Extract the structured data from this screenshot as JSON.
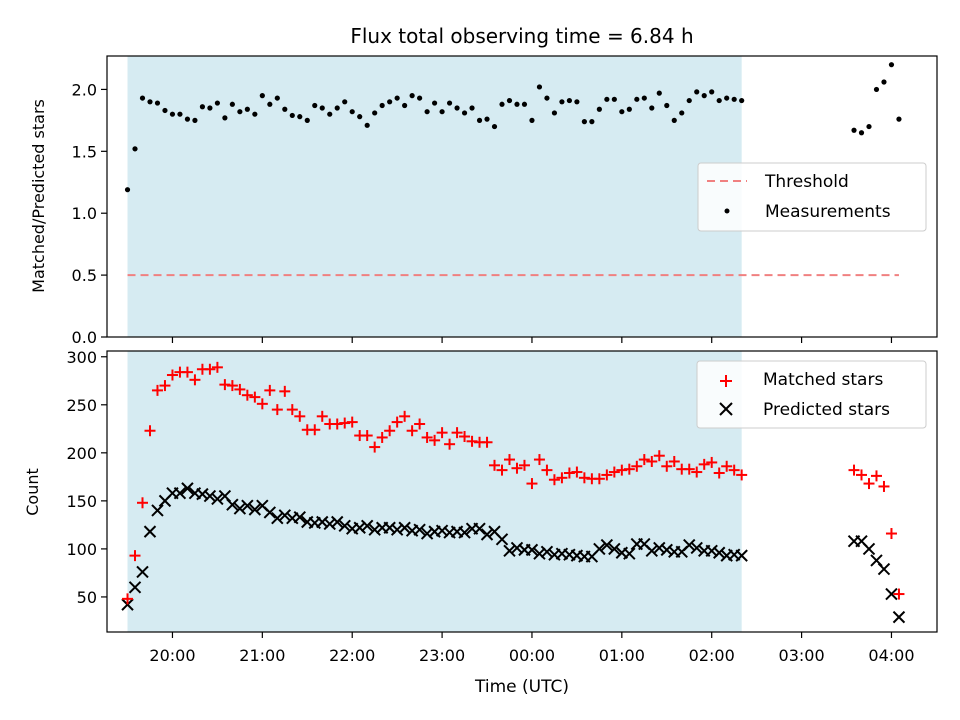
{
  "title": "Flux total observing time = 6.84 h",
  "xlabel": "Time (UTC)",
  "x_ticks": [
    "20:00",
    "21:00",
    "22:00",
    "23:00",
    "00:00",
    "01:00",
    "02:00",
    "03:00",
    "04:00"
  ],
  "colors": {
    "shade": "#add8e6",
    "threshold": "#f08080",
    "matched": "#ff0000",
    "predicted": "#000000",
    "measurement": "#000000"
  },
  "chart_data": [
    {
      "type": "scatter",
      "ylabel": "Matched/Predicted stars",
      "ylim": [
        0,
        2.27
      ],
      "yticks": [
        "0.0",
        "0.5",
        "1.0",
        "1.5",
        "2.0"
      ],
      "shaded_span": {
        "from": "19:30",
        "to": "02:20"
      },
      "legend": {
        "placement": "center-right",
        "entries": [
          "Threshold",
          "Measurements"
        ]
      },
      "series": [
        {
          "name": "Threshold",
          "kind": "dashed-line",
          "x": [
            "19:30",
            "04:05"
          ],
          "y": [
            0.5,
            0.5
          ]
        },
        {
          "name": "Measurements",
          "kind": "points",
          "x": [
            "19:30",
            "19:35",
            "19:40",
            "19:45",
            "19:50",
            "19:55",
            "20:00",
            "20:05",
            "20:10",
            "20:15",
            "20:20",
            "20:25",
            "20:30",
            "20:35",
            "20:40",
            "20:45",
            "20:50",
            "20:55",
            "21:00",
            "21:05",
            "21:10",
            "21:15",
            "21:20",
            "21:25",
            "21:30",
            "21:35",
            "21:40",
            "21:45",
            "21:50",
            "21:55",
            "22:00",
            "22:05",
            "22:10",
            "22:15",
            "22:20",
            "22:25",
            "22:30",
            "22:35",
            "22:40",
            "22:45",
            "22:50",
            "22:55",
            "23:00",
            "23:05",
            "23:10",
            "23:15",
            "23:20",
            "23:25",
            "23:30",
            "23:35",
            "23:40",
            "23:45",
            "23:50",
            "23:55",
            "00:00",
            "00:05",
            "00:10",
            "00:15",
            "00:20",
            "00:25",
            "00:30",
            "00:35",
            "00:40",
            "00:45",
            "00:50",
            "00:55",
            "01:00",
            "01:05",
            "01:10",
            "01:15",
            "01:20",
            "01:25",
            "01:30",
            "01:35",
            "01:40",
            "01:45",
            "01:50",
            "01:55",
            "02:00",
            "02:05",
            "02:10",
            "02:15",
            "02:20",
            "03:35",
            "03:40",
            "03:45",
            "03:50",
            "03:55",
            "04:00",
            "04:05"
          ],
          "y": [
            1.19,
            1.52,
            1.93,
            1.9,
            1.89,
            1.83,
            1.8,
            1.8,
            1.76,
            1.75,
            1.86,
            1.85,
            1.89,
            1.77,
            1.88,
            1.82,
            1.84,
            1.8,
            1.95,
            1.88,
            1.93,
            1.84,
            1.79,
            1.78,
            1.75,
            1.87,
            1.85,
            1.8,
            1.85,
            1.9,
            1.82,
            1.78,
            1.71,
            1.81,
            1.87,
            1.9,
            1.93,
            1.87,
            1.95,
            1.93,
            1.82,
            1.89,
            1.82,
            1.89,
            1.85,
            1.81,
            1.85,
            1.75,
            1.76,
            1.7,
            1.88,
            1.91,
            1.88,
            1.88,
            1.75,
            2.02,
            1.93,
            1.81,
            1.9,
            1.91,
            1.9,
            1.74,
            1.74,
            1.84,
            1.92,
            1.92,
            1.82,
            1.84,
            1.92,
            1.93,
            1.85,
            1.97,
            1.87,
            1.75,
            1.81,
            1.91,
            1.98,
            1.95,
            1.98,
            1.91,
            1.93,
            1.92,
            1.91,
            1.67,
            1.65,
            1.7,
            2.0,
            2.06,
            2.2,
            1.76
          ]
        }
      ]
    },
    {
      "type": "scatter",
      "ylabel": "Count",
      "ylim": [
        13.5,
        306
      ],
      "yticks": [
        "50",
        "100",
        "150",
        "200",
        "250",
        "300"
      ],
      "shaded_span": {
        "from": "19:30",
        "to": "02:20"
      },
      "legend": {
        "placement": "top-right",
        "entries": [
          "Matched stars",
          "Predicted stars"
        ]
      },
      "series": [
        {
          "name": "Matched stars",
          "marker": "plus",
          "x": [
            "19:30",
            "19:35",
            "19:40",
            "19:45",
            "19:50",
            "19:55",
            "20:00",
            "20:05",
            "20:10",
            "20:15",
            "20:20",
            "20:25",
            "20:30",
            "20:35",
            "20:40",
            "20:45",
            "20:50",
            "20:55",
            "21:00",
            "21:05",
            "21:10",
            "21:15",
            "21:20",
            "21:25",
            "21:30",
            "21:35",
            "21:40",
            "21:45",
            "21:50",
            "21:55",
            "22:00",
            "22:05",
            "22:10",
            "22:15",
            "22:20",
            "22:25",
            "22:30",
            "22:35",
            "22:40",
            "22:45",
            "22:50",
            "22:55",
            "23:00",
            "23:05",
            "23:10",
            "23:15",
            "23:20",
            "23:25",
            "23:30",
            "23:35",
            "23:40",
            "23:45",
            "23:50",
            "23:55",
            "00:00",
            "00:05",
            "00:10",
            "00:15",
            "00:20",
            "00:25",
            "00:30",
            "00:35",
            "00:40",
            "00:45",
            "00:50",
            "00:55",
            "01:00",
            "01:05",
            "01:10",
            "01:15",
            "01:20",
            "01:25",
            "01:30",
            "01:35",
            "01:40",
            "01:45",
            "01:50",
            "01:55",
            "02:00",
            "02:05",
            "02:10",
            "02:15",
            "02:20",
            "03:35",
            "03:40",
            "03:45",
            "03:50",
            "03:55",
            "04:00",
            "04:05"
          ],
          "y": [
            48,
            93,
            148,
            223,
            265,
            270,
            281,
            284,
            284,
            276,
            287,
            287,
            289,
            271,
            270,
            266,
            260,
            258,
            251,
            265,
            245,
            264,
            245,
            238,
            224,
            224,
            238,
            230,
            230,
            231,
            232,
            218,
            218,
            206,
            216,
            223,
            232,
            238,
            223,
            230,
            216,
            213,
            221,
            209,
            221,
            217,
            212,
            211,
            211,
            187,
            182,
            193,
            184,
            187,
            168,
            193,
            182,
            172,
            174,
            179,
            180,
            174,
            173,
            173,
            177,
            180,
            182,
            183,
            186,
            193,
            191,
            197,
            186,
            191,
            183,
            183,
            180,
            188,
            190,
            179,
            186,
            182,
            177,
            182,
            177,
            168,
            176,
            165,
            116,
            53
          ]
        },
        {
          "name": "Predicted stars",
          "marker": "x",
          "x": [
            "19:30",
            "19:35",
            "19:40",
            "19:45",
            "19:50",
            "19:55",
            "20:00",
            "20:05",
            "20:10",
            "20:15",
            "20:20",
            "20:25",
            "20:30",
            "20:35",
            "20:40",
            "20:45",
            "20:50",
            "20:55",
            "21:00",
            "21:05",
            "21:10",
            "21:15",
            "21:20",
            "21:25",
            "21:30",
            "21:35",
            "21:40",
            "21:45",
            "21:50",
            "21:55",
            "22:00",
            "22:05",
            "22:10",
            "22:15",
            "22:20",
            "22:25",
            "22:30",
            "22:35",
            "22:40",
            "22:45",
            "22:50",
            "22:55",
            "23:00",
            "23:05",
            "23:10",
            "23:15",
            "23:20",
            "23:25",
            "23:30",
            "23:35",
            "23:40",
            "23:45",
            "23:50",
            "23:55",
            "00:00",
            "00:05",
            "00:10",
            "00:15",
            "00:20",
            "00:25",
            "00:30",
            "00:35",
            "00:40",
            "00:45",
            "00:50",
            "00:55",
            "01:00",
            "01:05",
            "01:10",
            "01:15",
            "01:20",
            "01:25",
            "01:30",
            "01:35",
            "01:40",
            "01:45",
            "01:50",
            "01:55",
            "02:00",
            "02:05",
            "02:10",
            "02:15",
            "02:20",
            "03:35",
            "03:40",
            "03:45",
            "03:50",
            "03:55",
            "04:00",
            "04:05"
          ],
          "y": [
            42,
            60,
            76,
            118,
            140,
            150,
            158,
            158,
            163,
            158,
            157,
            155,
            152,
            155,
            146,
            142,
            145,
            141,
            145,
            138,
            132,
            135,
            132,
            133,
            128,
            127,
            128,
            126,
            128,
            124,
            121,
            122,
            124,
            120,
            122,
            122,
            120,
            122,
            119,
            120,
            116,
            118,
            119,
            117,
            118,
            117,
            121,
            121,
            115,
            118,
            110,
            98,
            101,
            99,
            99,
            95,
            97,
            94,
            95,
            94,
            93,
            92,
            92,
            100,
            104,
            100,
            96,
            95,
            105,
            105,
            98,
            101,
            99,
            97,
            97,
            104,
            101,
            98,
            98,
            96,
            93,
            94,
            93,
            108,
            108,
            100,
            88,
            79,
            53,
            29
          ]
        }
      ]
    }
  ]
}
